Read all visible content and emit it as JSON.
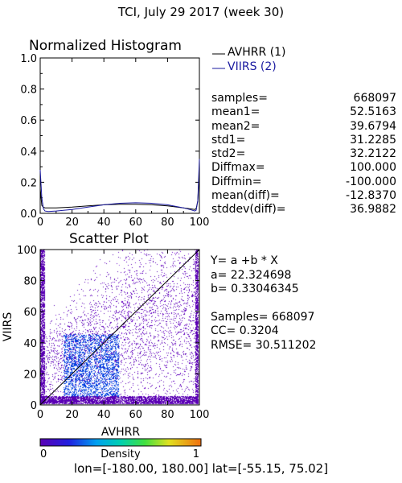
{
  "header": {
    "title": "TCI,  July 29 2017 (week 30)"
  },
  "histogram": {
    "title": "Normalized Histogram",
    "legend": [
      {
        "label": "AVHRR (1)",
        "color": "#000000"
      },
      {
        "label": "VIIRS (2)",
        "color": "#1a1aa0"
      }
    ],
    "stats": [
      {
        "label": "samples=",
        "value": "668097"
      },
      {
        "label": "mean1=",
        "value": "52.5163"
      },
      {
        "label": "mean2=",
        "value": "39.6794"
      },
      {
        "label": "std1=",
        "value": "31.2285"
      },
      {
        "label": "std2=",
        "value": "32.2122"
      },
      {
        "label": "Diffmax=",
        "value": "100.000"
      },
      {
        "label": "Diffmin=",
        "value": "-100.000"
      },
      {
        "label": "mean(diff)=",
        "value": "-12.8370"
      },
      {
        "label": "stddev(diff)=",
        "value": "36.9882"
      }
    ]
  },
  "scatter": {
    "title": "Scatter Plot",
    "xlabel": "AVHRR",
    "ylabel": "VIIRS",
    "regression": {
      "equation": "Y= a +b * X",
      "a": "a= 22.324698",
      "b": "b= 0.33046345",
      "samples": "Samples= 668097",
      "cc": "CC=  0.3204",
      "rmse": "RMSE= 30.511202"
    }
  },
  "colorbar": {
    "label": "Density",
    "min": "0",
    "max": "1"
  },
  "region": {
    "text": "lon=[-180.00, 180.00] lat=[-55.15, 75.02]"
  },
  "chart_data": [
    {
      "type": "line",
      "title": "Normalized Histogram",
      "xlim": [
        0,
        100
      ],
      "ylim": [
        0,
        1
      ],
      "xticks": [
        "0",
        "20",
        "40",
        "60",
        "80",
        "100"
      ],
      "yticks": [
        "0.0",
        "0.2",
        "0.4",
        "0.6",
        "0.8",
        "1.0"
      ],
      "series": [
        {
          "name": "AVHRR (1)",
          "color": "#000000",
          "x": [
            0,
            1,
            2,
            3,
            5,
            10,
            20,
            30,
            40,
            50,
            60,
            70,
            80,
            90,
            95,
            97,
            98,
            99,
            100
          ],
          "y": [
            0.16,
            0.05,
            0.04,
            0.035,
            0.035,
            0.035,
            0.04,
            0.048,
            0.055,
            0.058,
            0.058,
            0.055,
            0.048,
            0.035,
            0.028,
            0.025,
            0.03,
            0.08,
            0.28
          ]
        },
        {
          "name": "VIIRS (2)",
          "color": "#1a1aa0",
          "x": [
            0,
            1,
            2,
            3,
            5,
            10,
            20,
            30,
            40,
            50,
            60,
            70,
            80,
            90,
            95,
            97,
            98,
            99,
            100
          ],
          "y": [
            0.28,
            0.1,
            0.03,
            0.015,
            0.012,
            0.015,
            0.025,
            0.04,
            0.055,
            0.065,
            0.068,
            0.065,
            0.055,
            0.035,
            0.022,
            0.015,
            0.02,
            0.08,
            0.35
          ]
        }
      ]
    },
    {
      "type": "scatter",
      "title": "Scatter Plot",
      "xlabel": "AVHRR",
      "ylabel": "VIIRS",
      "xlim": [
        0,
        100
      ],
      "ylim": [
        0,
        100
      ],
      "xticks": [
        "0",
        "20",
        "40",
        "60",
        "80",
        "100"
      ],
      "yticks": [
        "0",
        "20",
        "40",
        "60",
        "80",
        "100"
      ],
      "regression": {
        "a": 22.324698,
        "b": 0.33046345
      },
      "samples": 668097,
      "cc": 0.3204,
      "rmse": 30.511202
    }
  ]
}
